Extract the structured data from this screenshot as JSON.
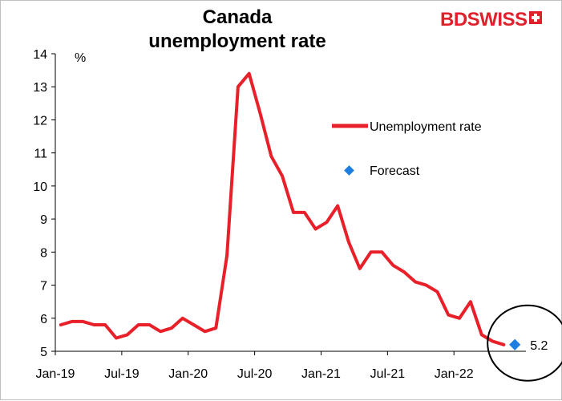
{
  "logo": {
    "text": "BDSWISS",
    "brand_color": "#e0202b",
    "icon": "swiss-cross-icon"
  },
  "chart_data": {
    "type": "line",
    "title": "Canada unemployment rate",
    "ylabel": "%",
    "xlabel": "",
    "ylim": [
      5,
      14
    ],
    "yticks": [
      5,
      6,
      7,
      8,
      9,
      10,
      11,
      12,
      13,
      14
    ],
    "xtick_labels": [
      "Jan-19",
      "Jul-19",
      "Jan-20",
      "Jul-20",
      "Jan-21",
      "Jul-21",
      "Jan-22"
    ],
    "x": [
      "Jan-19",
      "Feb-19",
      "Mar-19",
      "Apr-19",
      "May-19",
      "Jun-19",
      "Jul-19",
      "Aug-19",
      "Sep-19",
      "Oct-19",
      "Nov-19",
      "Dec-19",
      "Jan-20",
      "Feb-20",
      "Mar-20",
      "Apr-20",
      "May-20",
      "Jun-20",
      "Jul-20",
      "Aug-20",
      "Sep-20",
      "Oct-20",
      "Nov-20",
      "Dec-20",
      "Jan-21",
      "Feb-21",
      "Mar-21",
      "Apr-21",
      "May-21",
      "Jun-21",
      "Jul-21",
      "Aug-21",
      "Sep-21",
      "Oct-21",
      "Nov-21",
      "Dec-21",
      "Jan-22",
      "Feb-22",
      "Mar-22",
      "Apr-22",
      "May-22"
    ],
    "series": [
      {
        "name": "Unemployment rate",
        "color": "#e8202a",
        "values": [
          5.8,
          5.9,
          5.9,
          5.8,
          5.8,
          5.4,
          5.5,
          5.8,
          5.8,
          5.6,
          5.7,
          6.0,
          5.8,
          5.6,
          5.7,
          7.9,
          13.0,
          13.4,
          12.2,
          10.9,
          10.3,
          9.2,
          9.2,
          8.7,
          8.9,
          9.4,
          8.3,
          7.5,
          8.0,
          8.0,
          7.6,
          7.4,
          7.1,
          7.0,
          6.8,
          6.1,
          6.0,
          6.5,
          5.5,
          5.3,
          5.2
        ]
      },
      {
        "name": "Forecast",
        "color": "#1f7fe0",
        "marker": "diamond",
        "points": [
          {
            "x": "Jun-22",
            "y": 5.2,
            "label": "5.2"
          }
        ]
      }
    ],
    "legend_position": "right",
    "grid": false,
    "annotation": {
      "type": "circle",
      "around": "Forecast"
    }
  }
}
